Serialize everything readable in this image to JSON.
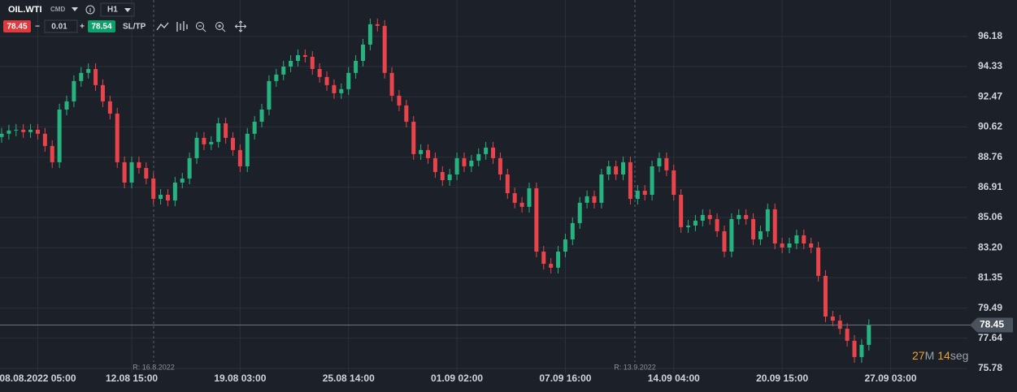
{
  "toolbar": {
    "symbol": "OIL.WTI",
    "market": "CMD",
    "timeframe": "H1",
    "sell_price": 78.45,
    "minus": "−",
    "volume": 0.01,
    "plus": "+",
    "buy_price": 78.54,
    "sl_tp": "SL/TP"
  },
  "chart_data": {
    "type": "candlestick",
    "categories": [
      null,
      null,
      null,
      null,
      null,
      "08.08.2022 05:00",
      null,
      null,
      null,
      null,
      null,
      null,
      null,
      null,
      null,
      null,
      null,
      null,
      "12.08 15:00",
      null,
      null,
      null,
      null,
      null,
      null,
      null,
      null,
      null,
      null,
      null,
      null,
      null,
      null,
      "19.08 03:00",
      null,
      null,
      null,
      null,
      null,
      null,
      null,
      null,
      null,
      null,
      null,
      null,
      null,
      null,
      "25.08 14:00",
      null,
      null,
      null,
      null,
      null,
      null,
      null,
      null,
      null,
      null,
      null,
      null,
      null,
      null,
      "01.09 02:00",
      null,
      null,
      null,
      null,
      null,
      null,
      null,
      null,
      null,
      null,
      null,
      null,
      null,
      null,
      "07.09 16:00",
      null,
      null,
      null,
      null,
      null,
      null,
      null,
      null,
      null,
      null,
      null,
      null,
      null,
      null,
      "14.09 04:00",
      null,
      null,
      null,
      null,
      null,
      null,
      null,
      null,
      null,
      null,
      null,
      null,
      null,
      null,
      "20.09 15:00",
      null,
      null,
      null,
      null,
      null,
      null,
      null,
      null,
      null,
      null,
      null,
      null,
      null,
      null,
      "27.09 03:00"
    ],
    "open": [
      90.0,
      90.2,
      90.4,
      90.45,
      90.3,
      90.45,
      90.2,
      89.45,
      88.45,
      91.69,
      92.19,
      93.44,
      93.94,
      94.18,
      93.19,
      92.19,
      91.44,
      88.45,
      87.2,
      88.45,
      88.1,
      87.45,
      86.2,
      86.45,
      86.1,
      87.2,
      87.45,
      88.7,
      89.95,
      89.55,
      89.7,
      90.84,
      89.95,
      89.2,
      88.2,
      90.2,
      90.94,
      91.69,
      93.44,
      93.84,
      94.33,
      94.68,
      95.03,
      94.93,
      94.18,
      93.69,
      93.19,
      92.69,
      92.94,
      93.94,
      94.68,
      95.68,
      96.93,
      96.83,
      93.94,
      92.54,
      91.94,
      90.94,
      88.95,
      89.2,
      88.7,
      87.85,
      87.35,
      87.7,
      88.7,
      88.2,
      88.55,
      88.95,
      89.35,
      88.7,
      87.7,
      86.55,
      85.96,
      85.71,
      86.85,
      82.96,
      82.21,
      81.97,
      82.96,
      83.71,
      84.71,
      85.96,
      86.36,
      85.96,
      87.7,
      88.2,
      87.7,
      88.45,
      86.2,
      86.7,
      86.45,
      88.2,
      88.7,
      87.95,
      86.45,
      84.46,
      84.56,
      84.86,
      85.21,
      84.96,
      84.21,
      82.96,
      84.96,
      85.21,
      84.96,
      83.71,
      84.21,
      85.56,
      83.46,
      83.21,
      83.46,
      83.96,
      83.46,
      83.21,
      81.47,
      78.97,
      78.72,
      78.22,
      77.48,
      76.48,
      77.23,
      null,
      null,
      null
    ],
    "high": [
      90.55,
      90.75,
      90.8,
      90.8,
      90.8,
      90.8,
      90.55,
      89.8,
      92.04,
      92.54,
      93.79,
      94.29,
      94.53,
      94.53,
      93.54,
      92.54,
      91.79,
      88.8,
      88.8,
      88.8,
      88.45,
      87.8,
      86.8,
      86.8,
      87.55,
      87.8,
      89.05,
      90.3,
      90.3,
      90.05,
      91.19,
      91.19,
      90.3,
      89.55,
      90.55,
      91.29,
      92.04,
      93.79,
      94.19,
      94.68,
      95.03,
      95.38,
      95.38,
      95.28,
      94.53,
      94.04,
      93.54,
      93.29,
      94.29,
      95.03,
      96.03,
      97.28,
      97.28,
      97.18,
      94.29,
      92.89,
      92.29,
      91.29,
      89.55,
      89.55,
      89.05,
      88.2,
      88.05,
      89.05,
      89.05,
      88.9,
      89.3,
      89.7,
      89.7,
      89.05,
      88.05,
      86.9,
      86.31,
      87.2,
      87.2,
      83.31,
      82.56,
      83.31,
      84.06,
      85.06,
      86.31,
      86.71,
      86.71,
      88.05,
      88.55,
      88.55,
      88.8,
      88.8,
      87.05,
      87.05,
      88.55,
      89.05,
      89.05,
      88.3,
      86.8,
      84.91,
      85.21,
      85.56,
      85.56,
      85.31,
      84.56,
      85.31,
      85.56,
      85.56,
      85.31,
      84.56,
      85.91,
      85.91,
      83.81,
      83.81,
      84.31,
      84.31,
      83.81,
      83.56,
      81.82,
      79.32,
      79.07,
      78.57,
      77.83,
      77.58,
      78.8,
      null,
      null,
      null
    ],
    "low": [
      89.65,
      89.85,
      90.05,
      89.95,
      89.95,
      89.85,
      89.1,
      88.1,
      88.1,
      91.34,
      91.84,
      93.09,
      93.59,
      92.84,
      91.84,
      91.09,
      88.1,
      86.85,
      86.85,
      87.75,
      87.1,
      85.85,
      85.85,
      85.75,
      85.75,
      86.85,
      87.1,
      88.35,
      89.2,
      89.2,
      89.35,
      89.6,
      88.85,
      87.85,
      87.85,
      89.85,
      90.59,
      91.34,
      93.09,
      93.49,
      93.98,
      94.33,
      94.58,
      93.83,
      93.34,
      92.84,
      92.34,
      92.34,
      92.59,
      93.59,
      94.33,
      95.33,
      96.48,
      93.59,
      92.19,
      91.59,
      90.59,
      88.6,
      88.6,
      88.35,
      87.5,
      87.0,
      87.0,
      87.35,
      87.85,
      87.85,
      88.2,
      88.6,
      88.35,
      87.35,
      86.2,
      85.61,
      85.36,
      85.36,
      82.61,
      81.86,
      81.62,
      81.62,
      82.61,
      83.36,
      84.36,
      85.61,
      85.61,
      85.61,
      87.35,
      87.35,
      87.35,
      85.85,
      85.85,
      86.1,
      86.1,
      87.85,
      87.6,
      86.1,
      84.11,
      84.11,
      84.21,
      84.51,
      84.61,
      83.86,
      82.61,
      82.61,
      84.61,
      84.61,
      83.36,
      83.36,
      83.86,
      83.11,
      82.86,
      82.86,
      83.11,
      83.11,
      82.86,
      81.12,
      78.62,
      78.37,
      77.87,
      77.13,
      76.13,
      76.13,
      76.88,
      null,
      null,
      null
    ],
    "close": [
      90.2,
      90.4,
      90.45,
      90.3,
      90.45,
      90.2,
      89.45,
      88.45,
      91.69,
      92.19,
      93.44,
      93.94,
      94.18,
      93.19,
      92.19,
      91.44,
      88.45,
      87.2,
      88.45,
      88.1,
      87.45,
      86.2,
      86.45,
      86.1,
      87.2,
      87.45,
      88.7,
      89.95,
      89.55,
      89.7,
      90.84,
      89.95,
      89.2,
      88.2,
      90.2,
      90.94,
      91.69,
      93.44,
      93.84,
      94.33,
      94.68,
      95.03,
      94.93,
      94.18,
      93.69,
      93.19,
      92.69,
      92.94,
      93.94,
      94.68,
      95.68,
      96.93,
      96.83,
      93.94,
      92.54,
      91.94,
      90.94,
      88.95,
      89.2,
      88.7,
      87.85,
      87.35,
      87.7,
      88.7,
      88.2,
      88.55,
      88.95,
      89.35,
      88.7,
      87.7,
      86.55,
      85.96,
      85.71,
      86.85,
      82.96,
      82.21,
      81.97,
      82.96,
      83.71,
      84.71,
      85.96,
      86.36,
      85.96,
      87.7,
      88.2,
      87.7,
      88.45,
      86.2,
      86.7,
      86.45,
      88.2,
      88.7,
      87.95,
      86.45,
      84.46,
      84.56,
      84.86,
      85.21,
      84.96,
      84.21,
      82.96,
      84.96,
      85.21,
      84.96,
      83.71,
      84.21,
      85.56,
      83.46,
      83.21,
      83.46,
      83.96,
      83.46,
      83.21,
      81.47,
      78.97,
      78.72,
      78.22,
      77.48,
      76.48,
      77.23,
      78.45,
      null,
      null,
      null
    ],
    "up_color": "#26b37f",
    "down_color": "#e9434b",
    "ylim": [
      75.48,
      98.42
    ],
    "yticks": [
      75.78,
      77.64,
      79.49,
      81.35,
      {
        "value": 83.2,
        "label": "83.20"
      },
      85.06,
      86.91,
      88.76,
      90.62,
      92.47,
      94.33,
      96.18
    ],
    "grid": true,
    "current_price": 78.45,
    "annotations": [
      {
        "label": "R: 16.8.2022"
      },
      {
        "label": "R: 13.9.2022"
      }
    ]
  },
  "countdown": {
    "minutes": 27,
    "minutes_unit": "M",
    "seconds": 14,
    "seconds_unit": "seg"
  }
}
